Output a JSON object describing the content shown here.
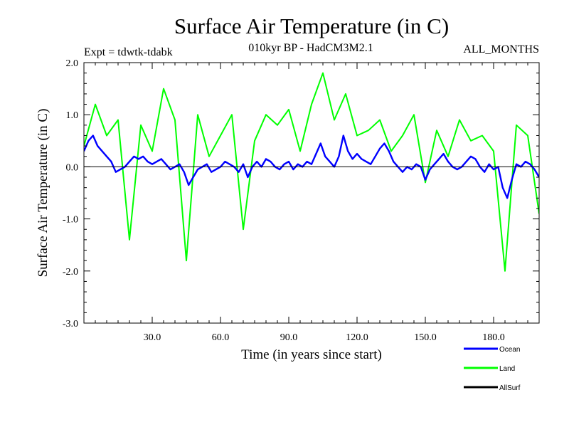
{
  "chart_data": {
    "type": "line",
    "title": "Surface Air Temperature (in C)",
    "subtitle": "010kyr BP - HadCM3M2.1",
    "experiment": "Expt = tdwtk-tdabk",
    "season": "ALL_MONTHS",
    "xlabel": "Time (in years since start)",
    "ylabel": "Surface Air Temperature (in C)",
    "xlim": [
      0,
      200
    ],
    "ylim": [
      -3.0,
      2.0
    ],
    "x_ticks": [
      30,
      60,
      90,
      120,
      150,
      180
    ],
    "x_tick_labels": [
      "30.0",
      "60.0",
      "90.0",
      "120.0",
      "150.0",
      "180.0"
    ],
    "y_ticks": [
      -3,
      -2,
      -1,
      0,
      1,
      2
    ],
    "y_tick_labels": [
      "-3.0",
      "-2.0",
      "-1.0",
      "0.0",
      "1.0",
      "2.0"
    ],
    "zero_line": true,
    "legend_position": "bottom-right",
    "series": [
      {
        "name": "Land",
        "color": "#00ff00",
        "x": [
          0,
          5,
          10,
          15,
          20,
          25,
          30,
          35,
          40,
          45,
          50,
          55,
          60,
          65,
          70,
          75,
          80,
          85,
          90,
          95,
          100,
          105,
          110,
          115,
          120,
          125,
          130,
          135,
          140,
          145,
          150,
          155,
          160,
          165,
          170,
          175,
          180,
          185,
          190,
          195,
          200
        ],
        "values": [
          0.4,
          1.2,
          0.6,
          0.9,
          -1.4,
          0.8,
          0.3,
          1.5,
          0.9,
          -1.8,
          1.0,
          0.2,
          0.6,
          1.0,
          -1.2,
          0.5,
          1.0,
          0.8,
          1.1,
          0.3,
          1.2,
          1.8,
          0.9,
          1.4,
          0.6,
          0.7,
          0.9,
          0.3,
          0.6,
          1.0,
          -0.3,
          0.7,
          0.2,
          0.9,
          0.5,
          0.6,
          0.3,
          -2.0,
          0.8,
          0.6,
          -0.9
        ]
      },
      {
        "name": "Ocean",
        "color": "#0000ff",
        "x": [
          0,
          2,
          4,
          6,
          8,
          10,
          12,
          14,
          16,
          18,
          20,
          22,
          24,
          26,
          28,
          30,
          32,
          34,
          36,
          38,
          40,
          42,
          44,
          46,
          48,
          50,
          52,
          54,
          56,
          58,
          60,
          62,
          64,
          66,
          68,
          70,
          72,
          74,
          76,
          78,
          80,
          82,
          84,
          86,
          88,
          90,
          92,
          94,
          96,
          98,
          100,
          102,
          104,
          106,
          108,
          110,
          112,
          114,
          116,
          118,
          120,
          122,
          124,
          126,
          128,
          130,
          132,
          134,
          136,
          138,
          140,
          142,
          144,
          146,
          148,
          150,
          152,
          154,
          156,
          158,
          160,
          162,
          164,
          166,
          168,
          170,
          172,
          174,
          176,
          178,
          180,
          182,
          184,
          186,
          188,
          190,
          192,
          194,
          196,
          198,
          200
        ],
        "values": [
          0.3,
          0.5,
          0.6,
          0.4,
          0.3,
          0.2,
          0.1,
          -0.1,
          -0.05,
          0.0,
          0.1,
          0.2,
          0.15,
          0.2,
          0.1,
          0.05,
          0.1,
          0.15,
          0.05,
          -0.05,
          0.0,
          0.05,
          -0.1,
          -0.35,
          -0.2,
          -0.05,
          0.0,
          0.05,
          -0.1,
          -0.05,
          0.0,
          0.1,
          0.05,
          0.0,
          -0.1,
          0.05,
          -0.2,
          0.0,
          0.1,
          0.0,
          0.15,
          0.1,
          0.0,
          -0.05,
          0.05,
          0.1,
          -0.05,
          0.05,
          0.0,
          0.1,
          0.05,
          0.25,
          0.45,
          0.2,
          0.1,
          0.0,
          0.2,
          0.6,
          0.3,
          0.15,
          0.25,
          0.15,
          0.1,
          0.05,
          0.2,
          0.35,
          0.45,
          0.3,
          0.1,
          0.0,
          -0.1,
          0.0,
          -0.05,
          0.05,
          0.0,
          -0.25,
          -0.05,
          0.05,
          0.15,
          0.25,
          0.1,
          0.0,
          -0.05,
          0.0,
          0.1,
          0.2,
          0.15,
          0.0,
          -0.1,
          0.05,
          -0.05,
          0.0,
          -0.4,
          -0.6,
          -0.25,
          0.05,
          0.0,
          0.1,
          0.05,
          -0.05,
          -0.2
        ]
      },
      {
        "name": "AllSurf",
        "color": "#000000",
        "x": [],
        "values": []
      }
    ]
  }
}
